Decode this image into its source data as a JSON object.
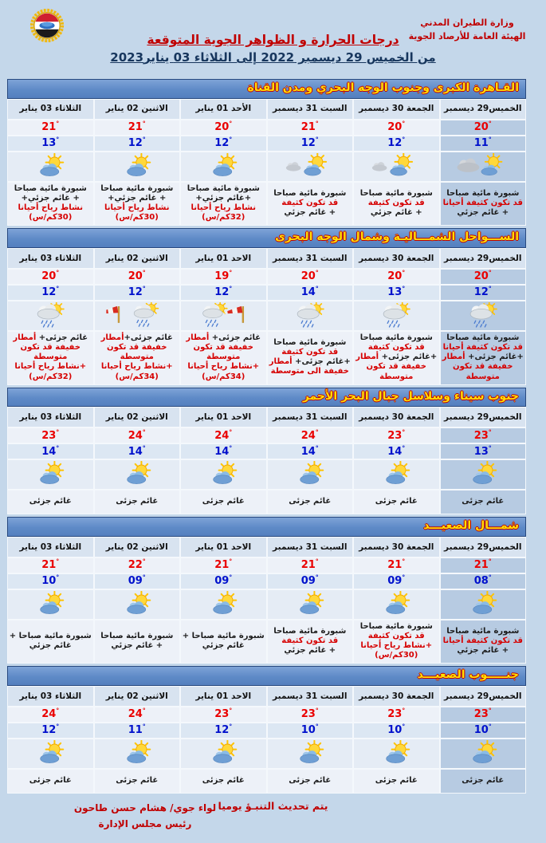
{
  "header": {
    "agency_line1": "وزارة الطيران المدني",
    "agency_line2": "الهيئة العامة للأرصاد الجوية",
    "title": "درجات الحرارة و الظواهر الجوية المتوقعة",
    "date_range": "من الخميس 29 ديسمبر  2022  إلى الثلاثاء 03  يناير2023",
    "logo": "egypt-meteorological-authority-emblem"
  },
  "colors": {
    "page_bg": "#c4d7ea",
    "section_bar_bg": "#5e8ac7",
    "section_bar_text": "#ffdf00",
    "high_temp": "#ea0000",
    "low_temp": "#0011cc",
    "alert_text": "#d60000",
    "thursday_column_bg": "#b7cbe2"
  },
  "sections": [
    {
      "title": "القـاهرة الكبرى وجنوب الوجه البحري ومدن القناة",
      "days": [
        {
          "day": "الخميس29 ديسمبر",
          "high": "20",
          "low": "11",
          "icon": "mist-sun",
          "desc": [
            [
              {
                "t": "شبورة مائية صباحا",
                "c": "k"
              }
            ],
            [
              {
                "t": "قد تكون كثيفة أحيانا",
                "c": "r"
              }
            ],
            [
              {
                "t": "+ غائم جزئي",
                "c": "k"
              }
            ]
          ]
        },
        {
          "day": "الجمعة 30 ديسمبر",
          "high": "20",
          "low": "12",
          "icon": "mist-partly",
          "desc": [
            [
              {
                "t": "شبورة مائية صباحا",
                "c": "k"
              }
            ],
            [
              {
                "t": "قد تكون كثيفة",
                "c": "r"
              }
            ],
            [
              {
                "t": "+ غائم جزئي",
                "c": "k"
              }
            ]
          ]
        },
        {
          "day": "السبت 31 ديسمبر",
          "high": "21",
          "low": "12",
          "icon": "mist-partly",
          "desc": [
            [
              {
                "t": "شبورة مائية صباحا",
                "c": "k"
              }
            ],
            [
              {
                "t": "قد تكون كثيفة",
                "c": "r"
              }
            ],
            [
              {
                "t": "+ غائم جزئي",
                "c": "k"
              }
            ]
          ]
        },
        {
          "day": "الأحد 01 يناير",
          "high": "20",
          "low": "12",
          "icon": "partly",
          "desc": [
            [
              {
                "t": "شبورة مائية صباحا",
                "c": "k"
              }
            ],
            [
              {
                "t": "+غائم جزئي+",
                "c": "k"
              }
            ],
            [
              {
                "t": "نشاط رياح أحيانا",
                "c": "r"
              }
            ],
            [
              {
                "t": "(32كم/س)",
                "c": "r"
              }
            ]
          ]
        },
        {
          "day": "الاثنين 02 يناير",
          "high": "21",
          "low": "12",
          "icon": "partly",
          "desc": [
            [
              {
                "t": "شبورة مائية صباحا",
                "c": "k"
              }
            ],
            [
              {
                "t": "+ غائم جزئي+",
                "c": "k"
              }
            ],
            [
              {
                "t": "نشاط رياح أحيانا",
                "c": "r"
              }
            ],
            [
              {
                "t": "(30كم/س)",
                "c": "r"
              }
            ]
          ]
        },
        {
          "day": "الثلاثاء 03 يناير",
          "high": "21",
          "low": "13",
          "icon": "partly",
          "desc": [
            [
              {
                "t": "شبورة مائية صباحا",
                "c": "k"
              }
            ],
            [
              {
                "t": "+ غائم جزئي+",
                "c": "k"
              }
            ],
            [
              {
                "t": "نشاط رياح أحيانا",
                "c": "r"
              }
            ],
            [
              {
                "t": "(30كم/س)",
                "c": "r"
              }
            ]
          ]
        }
      ]
    },
    {
      "title": "الســـواحل الشمـــاليـة وشمال الوجه البحرى",
      "days": [
        {
          "day": "الخميس29 ديسمبر",
          "high": "20",
          "low": "12",
          "icon": "rain-sun",
          "desc": [
            [
              {
                "t": "شبورة مائية صباحا",
                "c": "k"
              }
            ],
            [
              {
                "t": "قد تكون كثيفة أحيانا",
                "c": "r"
              }
            ],
            [
              {
                "t": "+غائم جزئى+ ",
                "c": "k"
              },
              {
                "t": "أمطار",
                "c": "r"
              }
            ],
            [
              {
                "t": "خفيفة قد تكون متوسطة",
                "c": "r"
              }
            ]
          ]
        },
        {
          "day": "الجمعة 30 ديسمبر",
          "high": "20",
          "low": "13",
          "icon": "rain-sun",
          "desc": [
            [
              {
                "t": "شبورة مائية صباحا",
                "c": "k"
              }
            ],
            [
              {
                "t": "قد تكون كثيفة",
                "c": "r"
              }
            ],
            [
              {
                "t": "+غائم جزئى+ ",
                "c": "k"
              },
              {
                "t": "أمطار",
                "c": "r"
              }
            ],
            [
              {
                "t": "خفيفة قد تكون متوسطة",
                "c": "r"
              }
            ]
          ]
        },
        {
          "day": "السبت 31 ديسمبر",
          "high": "20",
          "low": "14",
          "icon": "rain-sun",
          "desc": [
            [
              {
                "t": "شبورة مائية صباحا",
                "c": "k"
              }
            ],
            [
              {
                "t": "قد تكون كثيفة",
                "c": "r"
              }
            ],
            [
              {
                "t": "+غائم جزئى+ ",
                "c": "k"
              },
              {
                "t": "أمطار",
                "c": "r"
              }
            ],
            [
              {
                "t": "خفيفة الى متوسطة",
                "c": "r"
              }
            ]
          ]
        },
        {
          "day": "الاحد 01 يناير",
          "high": "19",
          "low": "12",
          "icon": "rain-windy-r",
          "desc": [
            [
              {
                "t": "غائم جزئى+ ",
                "c": "k"
              },
              {
                "t": "أمطار",
                "c": "r"
              }
            ],
            [
              {
                "t": "خفيفة قد تكون متوسطة",
                "c": "r"
              }
            ],
            [
              {
                "t": "+نشاط رياح أحيانا",
                "c": "r"
              }
            ],
            [
              {
                "t": "(34كم/س)",
                "c": "r"
              }
            ]
          ]
        },
        {
          "day": "الاثنين 02 يناير",
          "high": "20",
          "low": "12",
          "icon": "rain-windy-l",
          "desc": [
            [
              {
                "t": "غائم جزئى+",
                "c": "k"
              },
              {
                "t": "أمطار",
                "c": "r"
              }
            ],
            [
              {
                "t": "خفيفة قد تكون متوسطة",
                "c": "r"
              }
            ],
            [
              {
                "t": "+نشاط رياح أحيانا",
                "c": "r"
              }
            ],
            [
              {
                "t": "(34كم/س)",
                "c": "r"
              }
            ]
          ]
        },
        {
          "day": "الثلاثاء 03 يناير",
          "high": "20",
          "low": "12",
          "icon": "rain-sun",
          "desc": [
            [
              {
                "t": "غائم جزئى+ ",
                "c": "k"
              },
              {
                "t": "أمطار",
                "c": "r"
              }
            ],
            [
              {
                "t": "خفيفة قد تكون متوسطة",
                "c": "r"
              }
            ],
            [
              {
                "t": "+نشاط رياح أحيانا",
                "c": "r"
              }
            ],
            [
              {
                "t": "(32كم/س)",
                "c": "r"
              }
            ]
          ]
        }
      ]
    },
    {
      "title": "جنوب سيناء وسلاسل جبال البحر الأحمر",
      "days": [
        {
          "day": "الخميس29 ديسمبر",
          "high": "23",
          "low": "13",
          "icon": "partly",
          "desc": [
            [
              {
                "t": "غائم جزئى",
                "c": "k"
              }
            ]
          ]
        },
        {
          "day": "الجمعة 30 ديسمبر",
          "high": "23",
          "low": "14",
          "icon": "partly",
          "desc": [
            [
              {
                "t": "غائم جزئى",
                "c": "k"
              }
            ]
          ]
        },
        {
          "day": "السبت 31 ديسمبر",
          "high": "24",
          "low": "14",
          "icon": "partly",
          "desc": [
            [
              {
                "t": "غائم جزئى",
                "c": "k"
              }
            ]
          ]
        },
        {
          "day": "الاحد 01 يناير",
          "high": "24",
          "low": "14",
          "icon": "partly",
          "desc": [
            [
              {
                "t": "غائم جزئى",
                "c": "k"
              }
            ]
          ]
        },
        {
          "day": "الاثنين 02 يناير",
          "high": "24",
          "low": "14",
          "icon": "partly",
          "desc": [
            [
              {
                "t": "غائم جزئى",
                "c": "k"
              }
            ]
          ]
        },
        {
          "day": "الثلاثاء 03 يناير",
          "high": "23",
          "low": "14",
          "icon": "partly",
          "desc": [
            [
              {
                "t": "غائم جزئى",
                "c": "k"
              }
            ]
          ]
        }
      ]
    },
    {
      "title": "شمـــال الصعيـــد",
      "days": [
        {
          "day": "الخميس29 ديسمبر",
          "high": "21",
          "low": "08",
          "icon": "partly",
          "desc": [
            [
              {
                "t": "شبورة مائية صباحا",
                "c": "k"
              }
            ],
            [
              {
                "t": "قد تكون كثيفة أحيانا",
                "c": "r"
              }
            ],
            [
              {
                "t": "+ غائم جزئي",
                "c": "k"
              }
            ]
          ]
        },
        {
          "day": "الجمعة 30 ديسمبر",
          "high": "21",
          "low": "09",
          "icon": "partly",
          "desc": [
            [
              {
                "t": "شبورة مائية صباحا",
                "c": "k"
              }
            ],
            [
              {
                "t": "قد تكون كثيفة",
                "c": "r"
              }
            ],
            [
              {
                "t": "+نشاط رياح أحيانا",
                "c": "r"
              }
            ],
            [
              {
                "t": "(30كم/س)",
                "c": "r"
              }
            ]
          ]
        },
        {
          "day": "السبت 31 ديسمبر",
          "high": "21",
          "low": "09",
          "icon": "partly",
          "desc": [
            [
              {
                "t": "شبورة مائية صباحا",
                "c": "k"
              }
            ],
            [
              {
                "t": "قد تكون كثيفة",
                "c": "r"
              }
            ],
            [
              {
                "t": "+ غائم جزئي",
                "c": "k"
              }
            ]
          ]
        },
        {
          "day": "الاحد 01 يناير",
          "high": "21",
          "low": "09",
          "icon": "partly",
          "desc": [
            [
              {
                "t": "شبورة مائية صباحا +",
                "c": "k"
              }
            ],
            [
              {
                "t": "غائم جزئي",
                "c": "k"
              }
            ]
          ]
        },
        {
          "day": "الاثنين 02 يناير",
          "high": "22",
          "low": "09",
          "icon": "partly",
          "desc": [
            [
              {
                "t": "شبورة مائية صباحا",
                "c": "k"
              }
            ],
            [
              {
                "t": "+ غائم جزئي",
                "c": "k"
              }
            ]
          ]
        },
        {
          "day": "الثلاثاء 03 يناير",
          "high": "21",
          "low": "10",
          "icon": "partly",
          "desc": [
            [
              {
                "t": "شبورة مائية صباحا +",
                "c": "k"
              }
            ],
            [
              {
                "t": "غائم جزئي",
                "c": "k"
              }
            ]
          ]
        }
      ]
    },
    {
      "title": "جنـــــوب الصعيـــد",
      "days": [
        {
          "day": "الخميس29 ديسمبر",
          "high": "23",
          "low": "10",
          "icon": "partly",
          "desc": [
            [
              {
                "t": "غائم جزئى",
                "c": "k"
              }
            ]
          ]
        },
        {
          "day": "الجمعة 30 ديسمبر",
          "high": "23",
          "low": "10",
          "icon": "partly",
          "desc": [
            [
              {
                "t": "غائم جزئى",
                "c": "k"
              }
            ]
          ]
        },
        {
          "day": "السبت 31 ديسمبر",
          "high": "23",
          "low": "10",
          "icon": "partly",
          "desc": [
            [
              {
                "t": "غائم جزئى",
                "c": "k"
              }
            ]
          ]
        },
        {
          "day": "الاحد 01 يناير",
          "high": "23",
          "low": "12",
          "icon": "partly",
          "desc": [
            [
              {
                "t": "غائم جزئى",
                "c": "k"
              }
            ]
          ]
        },
        {
          "day": "الاثنين 02 يناير",
          "high": "24",
          "low": "11",
          "icon": "partly",
          "desc": [
            [
              {
                "t": "غائم جزئى",
                "c": "k"
              }
            ]
          ]
        },
        {
          "day": "الثلاثاء 03 يناير",
          "high": "24",
          "low": "12",
          "icon": "partly",
          "desc": [
            [
              {
                "t": "غائم جزئى",
                "c": "k"
              }
            ]
          ]
        }
      ]
    }
  ],
  "footer": {
    "note": "يتم تحديث التنبـؤ يوميا",
    "signature_line1": "لواء جوي/ هشام حسن طاحون",
    "signature_line2": "رئيس مجلس الإدارة"
  }
}
